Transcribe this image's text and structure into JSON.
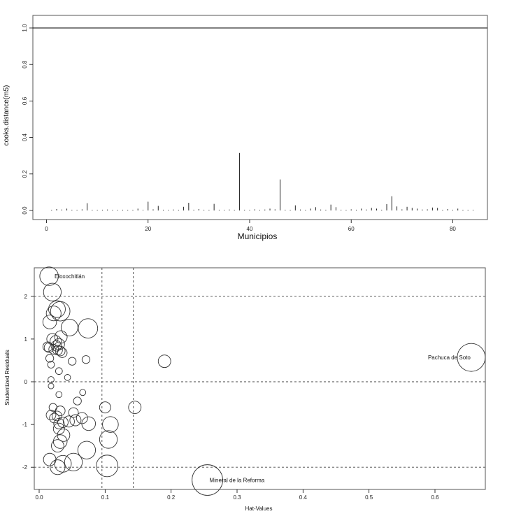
{
  "chart_data": [
    {
      "type": "bar",
      "xlabel": "Municipios",
      "ylabel": "cooks.distance(m5)",
      "xlim": [
        -2,
        86
      ],
      "ylim": [
        0,
        1.0
      ],
      "x_ticks": [
        0,
        20,
        40,
        60,
        80
      ],
      "x_tick_labels": [
        "0",
        "20",
        "40",
        "60",
        "80"
      ],
      "y_ticks": [
        0,
        0.2,
        0.4,
        0.6,
        0.8,
        1.0
      ],
      "y_tick_labels": [
        "0.0",
        "0.2",
        "0.4",
        "0.6",
        "0.8",
        "1.0"
      ],
      "reference_lines": [
        {
          "axis": "y",
          "value": 1.0,
          "style": "solid"
        }
      ],
      "x": [
        1,
        2,
        3,
        4,
        5,
        6,
        7,
        8,
        9,
        10,
        11,
        12,
        13,
        14,
        15,
        16,
        17,
        18,
        19,
        20,
        21,
        22,
        23,
        24,
        25,
        26,
        27,
        28,
        29,
        30,
        31,
        32,
        33,
        34,
        35,
        36,
        37,
        38,
        39,
        40,
        41,
        42,
        43,
        44,
        45,
        46,
        47,
        48,
        49,
        50,
        51,
        52,
        53,
        54,
        55,
        56,
        57,
        58,
        59,
        60,
        61,
        62,
        63,
        64,
        65,
        66,
        67,
        68,
        69,
        70,
        71,
        72,
        73,
        74,
        75,
        76,
        77,
        78,
        79,
        80,
        81,
        82,
        83,
        84
      ],
      "values": [
        0.003,
        0.008,
        0.005,
        0.01,
        0.004,
        0.003,
        0.006,
        0.04,
        0.003,
        0.002,
        0.004,
        0.005,
        0.003,
        0.002,
        0.004,
        0.003,
        0.002,
        0.01,
        0.004,
        0.048,
        0.006,
        0.025,
        0.004,
        0.003,
        0.005,
        0.002,
        0.02,
        0.042,
        0.004,
        0.008,
        0.004,
        0.003,
        0.036,
        0.004,
        0.003,
        0.005,
        0.003,
        0.315,
        0.004,
        0.003,
        0.006,
        0.003,
        0.005,
        0.01,
        0.006,
        0.17,
        0.004,
        0.003,
        0.028,
        0.005,
        0.003,
        0.01,
        0.018,
        0.005,
        0.004,
        0.032,
        0.018,
        0.004,
        0.003,
        0.006,
        0.004,
        0.01,
        0.005,
        0.014,
        0.01,
        0.004,
        0.035,
        0.078,
        0.022,
        0.006,
        0.02,
        0.014,
        0.01,
        0.005,
        0.006,
        0.016,
        0.014,
        0.003,
        0.008,
        0.004,
        0.01,
        0.003,
        0.003,
        0.004
      ]
    },
    {
      "type": "scatter",
      "xlabel": "Hat-Values",
      "ylabel": "Studentized Residuals",
      "xlim": [
        -0.01,
        0.7
      ],
      "ylim": [
        -2.5,
        2.65
      ],
      "x_ticks": [
        0,
        0.1,
        0.2,
        0.3,
        0.4,
        0.5,
        0.6
      ],
      "x_tick_labels": [
        "0.0",
        "0.1",
        "0.2",
        "0.3",
        "0.4",
        "0.5",
        "0.6"
      ],
      "y_ticks": [
        -2,
        -1,
        0,
        1,
        2
      ],
      "y_tick_labels": [
        "-2",
        "-1",
        "0",
        "1",
        "2"
      ],
      "reference_lines": [
        {
          "axis": "x",
          "value": 0.0952,
          "style": "dashed"
        },
        {
          "axis": "x",
          "value": 0.1428,
          "style": "dashed"
        },
        {
          "axis": "y",
          "value": -2,
          "style": "dashed"
        },
        {
          "axis": "y",
          "value": 0,
          "style": "dashed"
        },
        {
          "axis": "y",
          "value": 2,
          "style": "dashed"
        }
      ],
      "annotations": [
        {
          "label": "Eloxochitlán",
          "x": 0.018,
          "y": 2.47
        },
        {
          "label": "Pachuca de Soto",
          "x": 0.655,
          "y": 0.57
        },
        {
          "label": "Mineral de la Reforma",
          "x": 0.255,
          "y": -2.3
        }
      ],
      "points": [
        {
          "x": 0.015,
          "y": 2.47,
          "size": 0.11
        },
        {
          "x": 0.02,
          "y": 2.1,
          "size": 0.1
        },
        {
          "x": 0.022,
          "y": 1.6,
          "size": 0.07
        },
        {
          "x": 0.027,
          "y": 1.7,
          "size": 0.09
        },
        {
          "x": 0.032,
          "y": 1.65,
          "size": 0.12
        },
        {
          "x": 0.016,
          "y": 1.4,
          "size": 0.06
        },
        {
          "x": 0.046,
          "y": 1.27,
          "size": 0.09
        },
        {
          "x": 0.074,
          "y": 1.25,
          "size": 0.12
        },
        {
          "x": 0.033,
          "y": 1.05,
          "size": 0.05
        },
        {
          "x": 0.02,
          "y": 1.0,
          "size": 0.04
        },
        {
          "x": 0.025,
          "y": 0.95,
          "size": 0.04
        },
        {
          "x": 0.03,
          "y": 0.88,
          "size": 0.04
        },
        {
          "x": 0.026,
          "y": 0.84,
          "size": 0.035
        },
        {
          "x": 0.013,
          "y": 0.82,
          "size": 0.03
        },
        {
          "x": 0.015,
          "y": 0.8,
          "size": 0.03
        },
        {
          "x": 0.022,
          "y": 0.76,
          "size": 0.03
        },
        {
          "x": 0.028,
          "y": 0.74,
          "size": 0.03
        },
        {
          "x": 0.032,
          "y": 0.72,
          "size": 0.03
        },
        {
          "x": 0.035,
          "y": 0.68,
          "size": 0.03
        },
        {
          "x": 0.016,
          "y": 0.55,
          "size": 0.02
        },
        {
          "x": 0.05,
          "y": 0.48,
          "size": 0.02
        },
        {
          "x": 0.071,
          "y": 0.52,
          "size": 0.02
        },
        {
          "x": 0.19,
          "y": 0.48,
          "size": 0.05
        },
        {
          "x": 0.655,
          "y": 0.57,
          "size": 0.25
        },
        {
          "x": 0.018,
          "y": 0.4,
          "size": 0.015
        },
        {
          "x": 0.03,
          "y": 0.25,
          "size": 0.015
        },
        {
          "x": 0.018,
          "y": 0.05,
          "size": 0.012
        },
        {
          "x": 0.018,
          "y": -0.1,
          "size": 0.01
        },
        {
          "x": 0.043,
          "y": 0.1,
          "size": 0.012
        },
        {
          "x": 0.066,
          "y": -0.25,
          "size": 0.012
        },
        {
          "x": 0.03,
          "y": -0.3,
          "size": 0.012
        },
        {
          "x": 0.058,
          "y": -0.45,
          "size": 0.02
        },
        {
          "x": 0.021,
          "y": -0.6,
          "size": 0.02
        },
        {
          "x": 0.1,
          "y": -0.6,
          "size": 0.04
        },
        {
          "x": 0.145,
          "y": -0.6,
          "size": 0.05
        },
        {
          "x": 0.032,
          "y": -0.68,
          "size": 0.03
        },
        {
          "x": 0.018,
          "y": -0.78,
          "size": 0.03
        },
        {
          "x": 0.023,
          "y": -0.85,
          "size": 0.03
        },
        {
          "x": 0.027,
          "y": -0.8,
          "size": 0.03
        },
        {
          "x": 0.052,
          "y": -0.72,
          "size": 0.03
        },
        {
          "x": 0.065,
          "y": -0.85,
          "size": 0.04
        },
        {
          "x": 0.045,
          "y": -0.93,
          "size": 0.04
        },
        {
          "x": 0.055,
          "y": -0.9,
          "size": 0.04
        },
        {
          "x": 0.036,
          "y": -0.95,
          "size": 0.035
        },
        {
          "x": 0.03,
          "y": -0.98,
          "size": 0.035
        },
        {
          "x": 0.075,
          "y": -0.98,
          "size": 0.06
        },
        {
          "x": 0.108,
          "y": -1.0,
          "size": 0.08
        },
        {
          "x": 0.03,
          "y": -1.1,
          "size": 0.04
        },
        {
          "x": 0.037,
          "y": -1.25,
          "size": 0.05
        },
        {
          "x": 0.028,
          "y": -1.5,
          "size": 0.05
        },
        {
          "x": 0.032,
          "y": -1.4,
          "size": 0.06
        },
        {
          "x": 0.105,
          "y": -1.35,
          "size": 0.1
        },
        {
          "x": 0.072,
          "y": -1.6,
          "size": 0.1
        },
        {
          "x": 0.016,
          "y": -1.82,
          "size": 0.05
        },
        {
          "x": 0.052,
          "y": -1.88,
          "size": 0.1
        },
        {
          "x": 0.036,
          "y": -1.92,
          "size": 0.09
        },
        {
          "x": 0.028,
          "y": -2.0,
          "size": 0.07
        },
        {
          "x": 0.103,
          "y": -1.97,
          "size": 0.15
        },
        {
          "x": 0.255,
          "y": -2.3,
          "size": 0.3
        }
      ]
    }
  ]
}
